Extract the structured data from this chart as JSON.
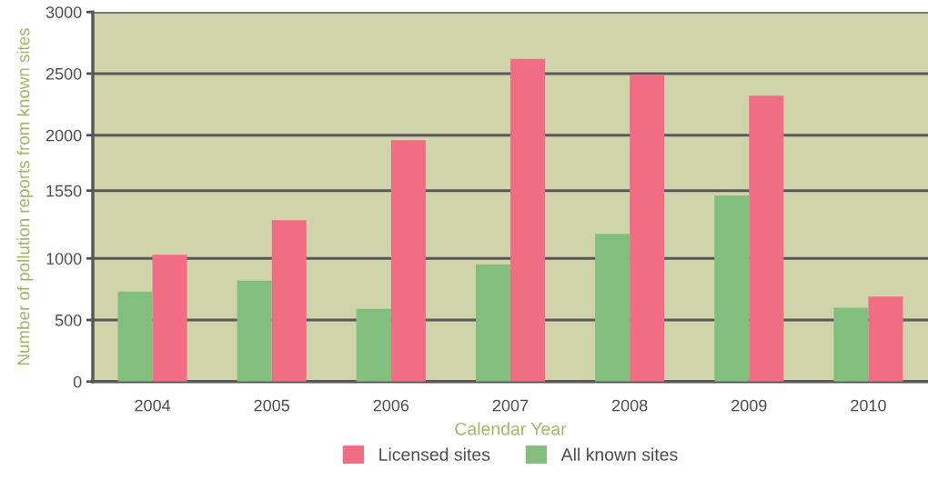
{
  "chart_data": {
    "type": "bar",
    "xlabel": "Calendar Year",
    "ylabel": "Number of pollution reports from known sites",
    "categories": [
      "2004",
      "2005",
      "2006",
      "2007",
      "2008",
      "2009",
      "2010"
    ],
    "series": [
      {
        "name": "Licensed sites",
        "color": "#f06d83",
        "values": [
          1030,
          1310,
          1960,
          2620,
          2490,
          2320,
          690
        ]
      },
      {
        "name": "All known sites",
        "color": "#82bf7e",
        "values": [
          730,
          820,
          590,
          950,
          1200,
          1510,
          600
        ]
      }
    ],
    "ylim": [
      0,
      3000
    ],
    "yticks": [
      0,
      500,
      1000,
      1550,
      2000,
      2500,
      3000
    ],
    "grid": "y",
    "legend": "bottom"
  }
}
